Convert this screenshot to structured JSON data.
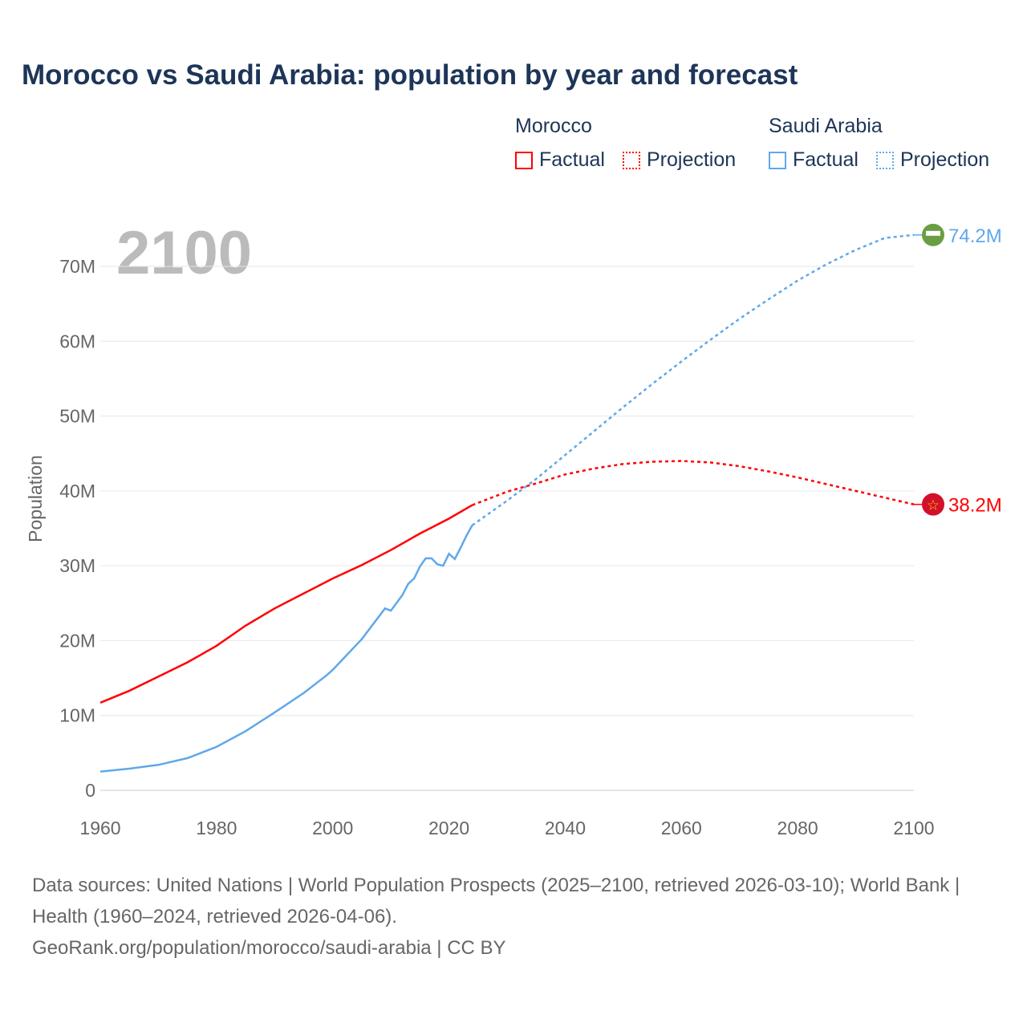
{
  "title": "Morocco vs Saudi Arabia: population by year and forecast",
  "legend": {
    "morocco": "Morocco",
    "saudi": "Saudi Arabia",
    "factual": "Factual",
    "projection": "Projection"
  },
  "year_label": "2100",
  "source_line1": "Data sources: United Nations | World Population Prospects (2025–2100, retrieved 2026-03-10); World Bank | Health (1960–2024, retrieved 2026-04-06).",
  "source_line2": "GeoRank.org/population/morocco/saudi-arabia | CC BY",
  "chart_data": {
    "type": "line",
    "ylabel": "Population",
    "xlabel": "",
    "xlim": [
      1960,
      2100
    ],
    "ylim": [
      0,
      70
    ],
    "xticks": [
      "1960",
      "1980",
      "2000",
      "2020",
      "2040",
      "2060",
      "2080",
      "2100"
    ],
    "yticks": [
      "0",
      "10M",
      "20M",
      "30M",
      "40M",
      "50M",
      "60M",
      "70M"
    ],
    "series": [
      {
        "name": "Morocco",
        "color": "#ff0000",
        "end_label": "38.2M",
        "factual": [
          [
            1960,
            11.7
          ],
          [
            1965,
            13.3
          ],
          [
            1970,
            15.2
          ],
          [
            1975,
            17.1
          ],
          [
            1980,
            19.3
          ],
          [
            1985,
            22.0
          ],
          [
            1990,
            24.3
          ],
          [
            1995,
            26.3
          ],
          [
            2000,
            28.3
          ],
          [
            2005,
            30.1
          ],
          [
            2010,
            32.1
          ],
          [
            2015,
            34.3
          ],
          [
            2020,
            36.3
          ],
          [
            2024,
            38.1
          ]
        ],
        "projection": [
          [
            2024,
            38.1
          ],
          [
            2030,
            39.9
          ],
          [
            2035,
            41.0
          ],
          [
            2040,
            42.2
          ],
          [
            2045,
            43.0
          ],
          [
            2050,
            43.6
          ],
          [
            2055,
            43.9
          ],
          [
            2060,
            44.0
          ],
          [
            2065,
            43.8
          ],
          [
            2070,
            43.3
          ],
          [
            2075,
            42.6
          ],
          [
            2080,
            41.8
          ],
          [
            2085,
            40.9
          ],
          [
            2090,
            40.0
          ],
          [
            2095,
            39.1
          ],
          [
            2100,
            38.2
          ]
        ]
      },
      {
        "name": "Saudi Arabia",
        "color": "#5fa8ea",
        "end_label": "74.2M",
        "factual": [
          [
            1960,
            2.5
          ],
          [
            1965,
            2.9
          ],
          [
            1970,
            3.4
          ],
          [
            1975,
            4.3
          ],
          [
            1980,
            5.8
          ],
          [
            1985,
            7.9
          ],
          [
            1990,
            10.4
          ],
          [
            1995,
            13.0
          ],
          [
            1999,
            15.4
          ],
          [
            2000,
            16.1
          ],
          [
            2005,
            20.2
          ],
          [
            2009,
            24.3
          ],
          [
            2010,
            24.0
          ],
          [
            2012,
            26.1
          ],
          [
            2013,
            27.6
          ],
          [
            2014,
            28.3
          ],
          [
            2015,
            29.9
          ],
          [
            2016,
            31.0
          ],
          [
            2017,
            31.0
          ],
          [
            2018,
            30.2
          ],
          [
            2019,
            30.0
          ],
          [
            2020,
            31.6
          ],
          [
            2021,
            30.9
          ],
          [
            2022,
            32.4
          ],
          [
            2023,
            34.0
          ],
          [
            2024,
            35.4
          ]
        ],
        "projection": [
          [
            2024,
            35.4
          ],
          [
            2030,
            38.7
          ],
          [
            2035,
            41.6
          ],
          [
            2040,
            44.8
          ],
          [
            2045,
            48.0
          ],
          [
            2050,
            51.2
          ],
          [
            2055,
            54.3
          ],
          [
            2060,
            57.3
          ],
          [
            2065,
            60.2
          ],
          [
            2070,
            63.0
          ],
          [
            2075,
            65.6
          ],
          [
            2080,
            68.1
          ],
          [
            2085,
            70.3
          ],
          [
            2090,
            72.2
          ],
          [
            2095,
            73.8
          ],
          [
            2100,
            74.2
          ]
        ]
      }
    ]
  }
}
